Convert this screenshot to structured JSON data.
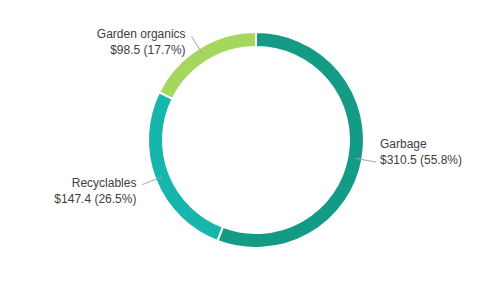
{
  "chart_data": {
    "type": "donut",
    "categories": [
      "Garbage",
      "Recyclables",
      "Garden organics"
    ],
    "values": [
      310.5,
      147.4,
      98.5
    ],
    "value_labels": [
      "$310.5 (55.8%)",
      "$147.4 (26.5%)",
      "$98.5 (17.7%)"
    ],
    "colors": [
      "#139b86",
      "#16b6ac",
      "#a5d65e"
    ],
    "data_labels": true
  }
}
